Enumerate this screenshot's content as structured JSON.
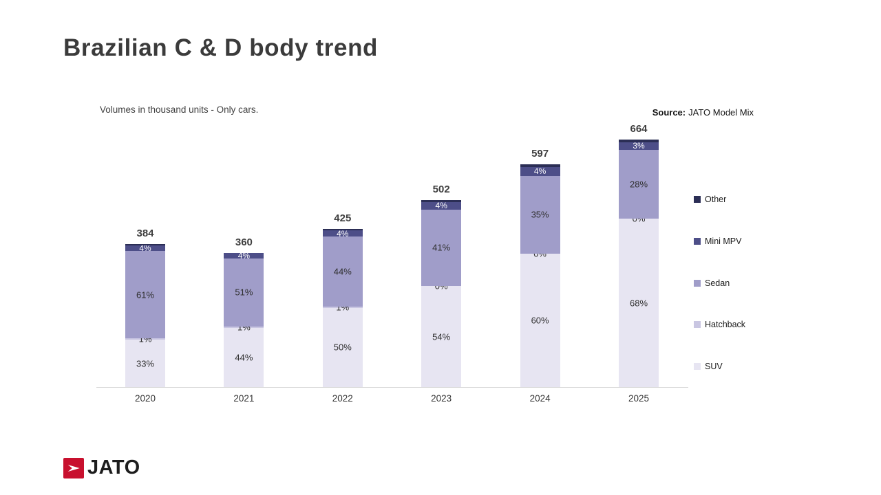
{
  "title": "Brazilian C & D body trend",
  "subtitle": "Volumes in thousand units - Only cars.",
  "source": {
    "label": "Source:",
    "value": "JATO Model Mix"
  },
  "logo_text": "JATO",
  "colors": {
    "other": "#2b2e55",
    "mini_mpv": "#4d4e88",
    "sedan": "#a09dc9",
    "hatchback": "#c9c6e2",
    "suv": "#e7e5f2",
    "accent_red": "#c8102e",
    "axis_line": "#d9d9d9",
    "title_text": "#3b3b3b"
  },
  "chart_data": {
    "type": "bar",
    "stacked": true,
    "title": "Brazilian C & D body trend",
    "subtitle": "Volumes in thousand units - Only cars.",
    "xlabel": "",
    "ylabel": "",
    "grid": false,
    "legend_position": "right",
    "categories": [
      "2020",
      "2021",
      "2022",
      "2023",
      "2024",
      "2025"
    ],
    "totals": [
      384,
      360,
      425,
      502,
      597,
      664
    ],
    "totals_unit": "thousand units",
    "series": [
      {
        "name": "SUV",
        "color_key": "suv",
        "values": [
          33,
          44,
          50,
          54,
          60,
          68
        ],
        "labeled": true
      },
      {
        "name": "Hatchback",
        "color_key": "hatchback",
        "values": [
          1,
          1,
          1,
          0,
          0,
          0
        ],
        "labeled": true
      },
      {
        "name": "Sedan",
        "color_key": "sedan",
        "values": [
          61,
          51,
          44,
          41,
          35,
          28
        ],
        "labeled": true
      },
      {
        "name": "Mini MPV",
        "color_key": "mini_mpv",
        "values": [
          4,
          4,
          4,
          4,
          4,
          3
        ],
        "labeled": true,
        "label_color": "#ffffff"
      },
      {
        "name": "Other",
        "color_key": "other",
        "values": [
          1,
          0,
          1,
          1,
          1,
          1
        ],
        "labeled": false
      }
    ],
    "legend": [
      {
        "name": "Other",
        "color_key": "other"
      },
      {
        "name": "Mini MPV",
        "color_key": "mini_mpv"
      },
      {
        "name": "Sedan",
        "color_key": "sedan"
      },
      {
        "name": "Hatchback",
        "color_key": "hatchback"
      },
      {
        "name": "SUV",
        "color_key": "suv"
      }
    ]
  }
}
